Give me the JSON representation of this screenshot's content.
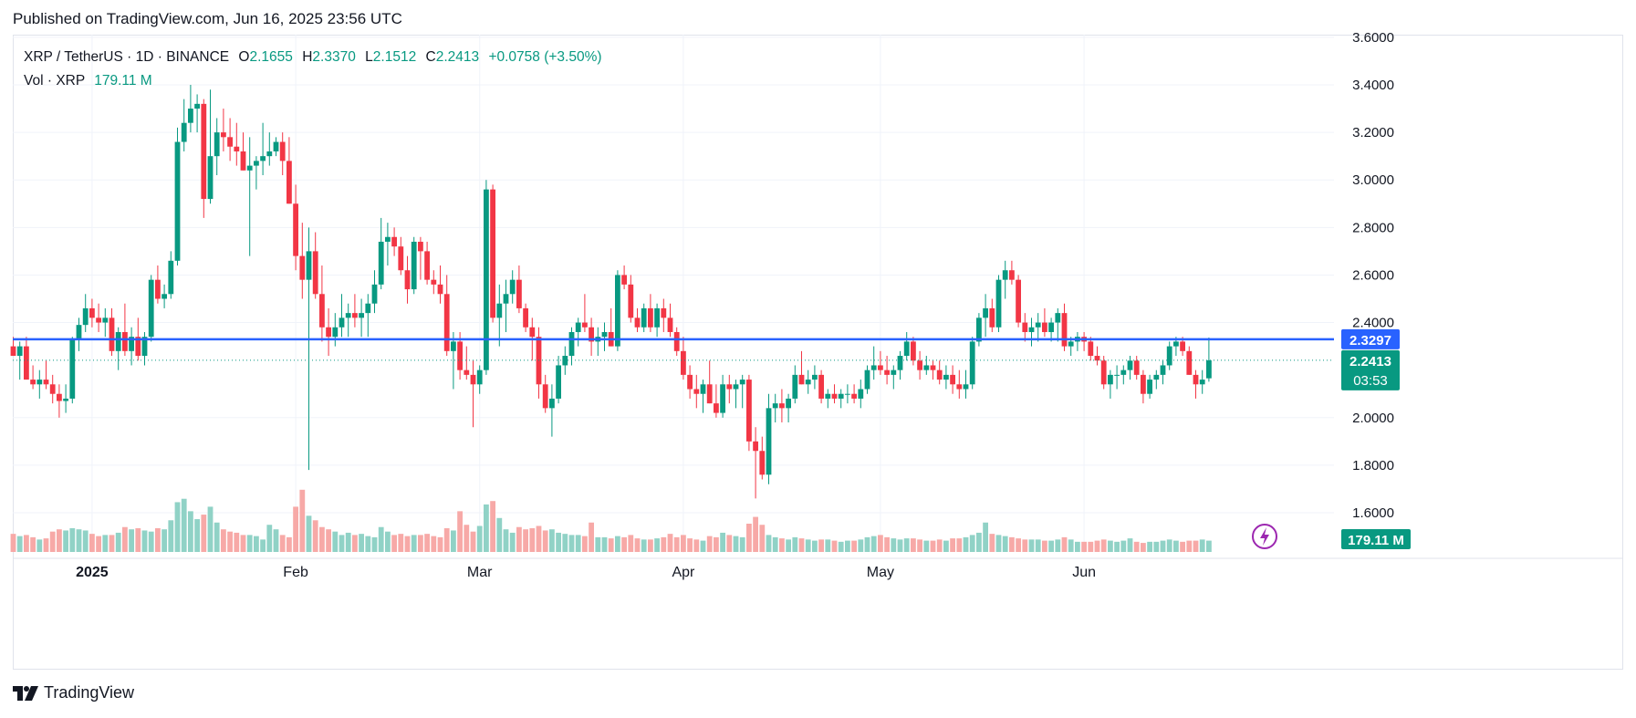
{
  "published": "Published on TradingView.com, Jun 16, 2025 23:56 UTC",
  "legend": {
    "symbol": "XRP / TetherUS · 1D · BINANCE",
    "open_label": "O",
    "open": "2.1655",
    "high_label": "H",
    "high": "2.3370",
    "low_label": "L",
    "low": "2.1512",
    "close_label": "C",
    "close": "2.2413",
    "change": "+0.0758 (+3.50%)",
    "vol_label": "Vol · XRP",
    "vol_value": "179.11 M"
  },
  "logo_text": "TradingView",
  "colors": {
    "up": "#089981",
    "down": "#f23645",
    "vol_up": "#90d2c6",
    "vol_down": "#f7a9a7",
    "hline": "#2962ff",
    "grid": "#f0f3fa"
  },
  "chart_data": {
    "type": "candlestick",
    "symbol": "XRP / TetherUS",
    "interval": "1D",
    "exchange": "BINANCE",
    "y_ticks": [
      "3.6000",
      "3.4000",
      "3.2000",
      "3.0000",
      "2.8000",
      "2.6000",
      "2.4000",
      "2.0000",
      "1.8000",
      "1.6000"
    ],
    "x_labels": [
      {
        "text": "2025",
        "index": 12,
        "bold": true
      },
      {
        "text": "Feb",
        "index": 43,
        "bold": false
      },
      {
        "text": "Mar",
        "index": 71,
        "bold": false
      },
      {
        "text": "Apr",
        "index": 102,
        "bold": false
      },
      {
        "text": "May",
        "index": 132,
        "bold": false
      },
      {
        "text": "Jun",
        "index": 163,
        "bold": false
      }
    ],
    "ylim": [
      1.46,
      3.63
    ],
    "horizontal_line": {
      "value": 2.3297,
      "label": "2.3297"
    },
    "last_price": {
      "value": 2.2413,
      "label": "2.2413",
      "countdown": "03:53"
    },
    "volume_label": "179.11 M",
    "candles": [
      [
        2.3,
        2.34,
        2.26,
        2.26
      ],
      [
        2.26,
        2.32,
        2.16,
        2.3
      ],
      [
        2.3,
        2.34,
        2.16,
        2.16
      ],
      [
        2.16,
        2.22,
        2.12,
        2.14
      ],
      [
        2.14,
        2.2,
        2.08,
        2.16
      ],
      [
        2.16,
        2.24,
        2.12,
        2.14
      ],
      [
        2.14,
        2.18,
        2.06,
        2.1
      ],
      [
        2.1,
        2.14,
        2.0,
        2.07
      ],
      [
        2.07,
        2.14,
        2.02,
        2.08
      ],
      [
        2.08,
        2.34,
        2.06,
        2.33
      ],
      [
        2.33,
        2.42,
        2.28,
        2.39
      ],
      [
        2.39,
        2.52,
        2.36,
        2.46
      ],
      [
        2.46,
        2.5,
        2.38,
        2.42
      ],
      [
        2.42,
        2.48,
        2.36,
        2.4
      ],
      [
        2.4,
        2.46,
        2.34,
        2.42
      ],
      [
        2.42,
        2.46,
        2.26,
        2.28
      ],
      [
        2.28,
        2.38,
        2.2,
        2.36
      ],
      [
        2.36,
        2.48,
        2.26,
        2.28
      ],
      [
        2.28,
        2.38,
        2.22,
        2.34
      ],
      [
        2.34,
        2.42,
        2.24,
        2.26
      ],
      [
        2.26,
        2.36,
        2.22,
        2.34
      ],
      [
        2.34,
        2.6,
        2.32,
        2.58
      ],
      [
        2.58,
        2.64,
        2.48,
        2.5
      ],
      [
        2.5,
        2.56,
        2.46,
        2.52
      ],
      [
        2.52,
        2.7,
        2.5,
        2.66
      ],
      [
        2.66,
        3.22,
        2.64,
        3.16
      ],
      [
        3.16,
        3.34,
        3.12,
        3.24
      ],
      [
        3.24,
        3.4,
        3.2,
        3.3
      ],
      [
        3.3,
        3.36,
        3.2,
        3.32
      ],
      [
        3.32,
        3.34,
        2.84,
        2.92
      ],
      [
        2.92,
        3.38,
        2.9,
        3.1
      ],
      [
        3.1,
        3.26,
        3.02,
        3.2
      ],
      [
        3.2,
        3.3,
        3.12,
        3.18
      ],
      [
        3.18,
        3.26,
        3.08,
        3.14
      ],
      [
        3.14,
        3.24,
        3.06,
        3.12
      ],
      [
        3.12,
        3.2,
        3.04,
        3.04
      ],
      [
        3.04,
        3.18,
        2.68,
        3.06
      ],
      [
        3.06,
        3.1,
        2.96,
        3.08
      ],
      [
        3.08,
        3.24,
        3.02,
        3.1
      ],
      [
        3.1,
        3.2,
        3.06,
        3.12
      ],
      [
        3.12,
        3.18,
        3.1,
        3.16
      ],
      [
        3.16,
        3.2,
        3.02,
        3.08
      ],
      [
        3.08,
        3.18,
        2.9,
        2.9
      ],
      [
        2.9,
        2.98,
        2.62,
        2.68
      ],
      [
        2.68,
        2.82,
        2.5,
        2.58
      ],
      [
        2.58,
        2.8,
        1.78,
        2.7
      ],
      [
        2.7,
        2.78,
        2.5,
        2.52
      ],
      [
        2.52,
        2.64,
        2.32,
        2.38
      ],
      [
        2.38,
        2.46,
        2.26,
        2.34
      ],
      [
        2.34,
        2.44,
        2.3,
        2.38
      ],
      [
        2.38,
        2.52,
        2.34,
        2.42
      ],
      [
        2.42,
        2.48,
        2.34,
        2.44
      ],
      [
        2.44,
        2.52,
        2.38,
        2.42
      ],
      [
        2.42,
        2.5,
        2.34,
        2.44
      ],
      [
        2.44,
        2.52,
        2.34,
        2.48
      ],
      [
        2.48,
        2.62,
        2.44,
        2.56
      ],
      [
        2.56,
        2.84,
        2.54,
        2.74
      ],
      [
        2.74,
        2.82,
        2.64,
        2.76
      ],
      [
        2.76,
        2.8,
        2.68,
        2.72
      ],
      [
        2.72,
        2.76,
        2.6,
        2.62
      ],
      [
        2.62,
        2.68,
        2.48,
        2.54
      ],
      [
        2.54,
        2.76,
        2.52,
        2.74
      ],
      [
        2.74,
        2.76,
        2.58,
        2.7
      ],
      [
        2.7,
        2.74,
        2.56,
        2.58
      ],
      [
        2.58,
        2.62,
        2.52,
        2.56
      ],
      [
        2.56,
        2.64,
        2.48,
        2.52
      ],
      [
        2.52,
        2.6,
        2.26,
        2.28
      ],
      [
        2.28,
        2.36,
        2.12,
        2.32
      ],
      [
        2.32,
        2.36,
        2.16,
        2.2
      ],
      [
        2.2,
        2.3,
        2.16,
        2.18
      ],
      [
        2.18,
        2.24,
        1.96,
        2.14
      ],
      [
        2.14,
        2.22,
        2.1,
        2.2
      ],
      [
        2.2,
        3.0,
        2.18,
        2.96
      ],
      [
        2.96,
        2.98,
        2.4,
        2.42
      ],
      [
        2.42,
        2.56,
        2.3,
        2.48
      ],
      [
        2.48,
        2.58,
        2.36,
        2.52
      ],
      [
        2.52,
        2.62,
        2.48,
        2.58
      ],
      [
        2.58,
        2.64,
        2.44,
        2.46
      ],
      [
        2.46,
        2.48,
        2.36,
        2.38
      ],
      [
        2.38,
        2.42,
        2.24,
        2.34
      ],
      [
        2.34,
        2.38,
        2.08,
        2.14
      ],
      [
        2.14,
        2.18,
        2.02,
        2.04
      ],
      [
        2.04,
        2.14,
        1.92,
        2.08
      ],
      [
        2.08,
        2.26,
        2.06,
        2.22
      ],
      [
        2.22,
        2.3,
        2.18,
        2.26
      ],
      [
        2.26,
        2.38,
        2.22,
        2.36
      ],
      [
        2.36,
        2.42,
        2.3,
        2.4
      ],
      [
        2.4,
        2.52,
        2.36,
        2.38
      ],
      [
        2.38,
        2.42,
        2.26,
        2.32
      ],
      [
        2.32,
        2.38,
        2.26,
        2.34
      ],
      [
        2.34,
        2.4,
        2.28,
        2.36
      ],
      [
        2.36,
        2.46,
        2.3,
        2.3
      ],
      [
        2.3,
        2.62,
        2.28,
        2.6
      ],
      [
        2.6,
        2.64,
        2.54,
        2.56
      ],
      [
        2.56,
        2.6,
        2.4,
        2.42
      ],
      [
        2.42,
        2.46,
        2.36,
        2.38
      ],
      [
        2.38,
        2.48,
        2.36,
        2.46
      ],
      [
        2.46,
        2.52,
        2.36,
        2.38
      ],
      [
        2.38,
        2.48,
        2.34,
        2.46
      ],
      [
        2.46,
        2.5,
        2.36,
        2.42
      ],
      [
        2.42,
        2.48,
        2.34,
        2.36
      ],
      [
        2.36,
        2.38,
        2.26,
        2.28
      ],
      [
        2.28,
        2.34,
        2.16,
        2.18
      ],
      [
        2.18,
        2.22,
        2.08,
        2.12
      ],
      [
        2.12,
        2.18,
        2.04,
        2.1
      ],
      [
        2.1,
        2.16,
        2.02,
        2.14
      ],
      [
        2.14,
        2.24,
        2.06,
        2.06
      ],
      [
        2.06,
        2.14,
        2.0,
        2.02
      ],
      [
        2.02,
        2.18,
        2.0,
        2.14
      ],
      [
        2.14,
        2.18,
        2.06,
        2.12
      ],
      [
        2.12,
        2.16,
        2.04,
        2.14
      ],
      [
        2.14,
        2.18,
        2.04,
        2.16
      ],
      [
        2.16,
        2.18,
        1.86,
        1.9
      ],
      [
        1.9,
        1.96,
        1.66,
        1.86
      ],
      [
        1.86,
        1.92,
        1.74,
        1.76
      ],
      [
        1.76,
        2.1,
        1.72,
        2.04
      ],
      [
        2.04,
        2.1,
        1.98,
        2.06
      ],
      [
        2.06,
        2.12,
        1.98,
        2.04
      ],
      [
        2.04,
        2.1,
        1.98,
        2.08
      ],
      [
        2.08,
        2.22,
        2.06,
        2.18
      ],
      [
        2.18,
        2.28,
        2.14,
        2.14
      ],
      [
        2.14,
        2.2,
        2.1,
        2.16
      ],
      [
        2.16,
        2.22,
        2.12,
        2.18
      ],
      [
        2.18,
        2.2,
        2.06,
        2.08
      ],
      [
        2.08,
        2.12,
        2.04,
        2.1
      ],
      [
        2.1,
        2.14,
        2.06,
        2.08
      ],
      [
        2.08,
        2.12,
        2.04,
        2.1
      ],
      [
        2.1,
        2.14,
        2.06,
        2.1
      ],
      [
        2.1,
        2.14,
        2.06,
        2.08
      ],
      [
        2.08,
        2.16,
        2.04,
        2.12
      ],
      [
        2.12,
        2.22,
        2.1,
        2.2
      ],
      [
        2.2,
        2.3,
        2.16,
        2.22
      ],
      [
        2.22,
        2.28,
        2.18,
        2.2
      ],
      [
        2.2,
        2.26,
        2.14,
        2.18
      ],
      [
        2.18,
        2.22,
        2.12,
        2.2
      ],
      [
        2.2,
        2.28,
        2.16,
        2.26
      ],
      [
        2.26,
        2.36,
        2.24,
        2.32
      ],
      [
        2.32,
        2.34,
        2.22,
        2.24
      ],
      [
        2.24,
        2.28,
        2.16,
        2.2
      ],
      [
        2.2,
        2.26,
        2.18,
        2.22
      ],
      [
        2.22,
        2.24,
        2.16,
        2.2
      ],
      [
        2.2,
        2.24,
        2.14,
        2.16
      ],
      [
        2.16,
        2.22,
        2.12,
        2.18
      ],
      [
        2.18,
        2.22,
        2.1,
        2.14
      ],
      [
        2.14,
        2.2,
        2.08,
        2.12
      ],
      [
        2.12,
        2.2,
        2.08,
        2.14
      ],
      [
        2.14,
        2.34,
        2.12,
        2.32
      ],
      [
        2.32,
        2.44,
        2.3,
        2.42
      ],
      [
        2.42,
        2.52,
        2.34,
        2.46
      ],
      [
        2.46,
        2.5,
        2.36,
        2.38
      ],
      [
        2.38,
        2.6,
        2.36,
        2.58
      ],
      [
        2.58,
        2.66,
        2.5,
        2.62
      ],
      [
        2.62,
        2.66,
        2.56,
        2.58
      ],
      [
        2.58,
        2.6,
        2.38,
        2.4
      ],
      [
        2.4,
        2.44,
        2.32,
        2.36
      ],
      [
        2.36,
        2.42,
        2.3,
        2.38
      ],
      [
        2.38,
        2.44,
        2.32,
        2.4
      ],
      [
        2.4,
        2.46,
        2.34,
        2.36
      ],
      [
        2.36,
        2.42,
        2.32,
        2.4
      ],
      [
        2.4,
        2.46,
        2.32,
        2.44
      ],
      [
        2.44,
        2.48,
        2.28,
        2.3
      ],
      [
        2.3,
        2.34,
        2.26,
        2.32
      ],
      [
        2.32,
        2.36,
        2.28,
        2.34
      ],
      [
        2.34,
        2.36,
        2.28,
        2.32
      ],
      [
        2.32,
        2.34,
        2.24,
        2.26
      ],
      [
        2.26,
        2.3,
        2.22,
        2.24
      ],
      [
        2.24,
        2.26,
        2.12,
        2.14
      ],
      [
        2.14,
        2.2,
        2.08,
        2.18
      ],
      [
        2.18,
        2.22,
        2.12,
        2.18
      ],
      [
        2.18,
        2.22,
        2.14,
        2.2
      ],
      [
        2.2,
        2.26,
        2.16,
        2.24
      ],
      [
        2.24,
        2.26,
        2.16,
        2.18
      ],
      [
        2.18,
        2.2,
        2.06,
        2.1
      ],
      [
        2.1,
        2.18,
        2.08,
        2.16
      ],
      [
        2.16,
        2.2,
        2.12,
        2.18
      ],
      [
        2.18,
        2.24,
        2.14,
        2.22
      ],
      [
        2.22,
        2.32,
        2.2,
        2.3
      ],
      [
        2.3,
        2.34,
        2.26,
        2.32
      ],
      [
        2.32,
        2.34,
        2.26,
        2.28
      ],
      [
        2.28,
        2.3,
        2.18,
        2.18
      ],
      [
        2.18,
        2.2,
        2.08,
        2.14
      ],
      [
        2.14,
        2.2,
        2.1,
        2.16
      ],
      [
        2.1655,
        2.337,
        2.1512,
        2.2413
      ]
    ],
    "volumes": [
      32,
      28,
      30,
      26,
      22,
      24,
      36,
      40,
      38,
      42,
      40,
      38,
      32,
      28,
      30,
      30,
      34,
      44,
      40,
      42,
      38,
      36,
      42,
      40,
      56,
      88,
      94,
      72,
      58,
      66,
      80,
      52,
      40,
      36,
      34,
      30,
      30,
      28,
      22,
      48,
      40,
      30,
      26,
      80,
      110,
      64,
      56,
      44,
      40,
      36,
      30,
      34,
      30,
      32,
      28,
      26,
      44,
      36,
      30,
      32,
      28,
      30,
      30,
      32,
      28,
      26,
      42,
      38,
      72,
      48,
      36,
      46,
      84,
      90,
      60,
      40,
      34,
      44,
      40,
      42,
      46,
      38,
      40,
      34,
      32,
      30,
      30,
      28,
      52,
      26,
      26,
      24,
      28,
      26,
      30,
      24,
      22,
      22,
      24,
      26,
      32,
      26,
      30,
      24,
      22,
      20,
      28,
      26,
      34,
      30,
      28,
      26,
      50,
      62,
      48,
      30,
      26,
      24,
      22,
      26,
      24,
      22,
      20,
      22,
      22,
      20,
      18,
      20,
      20,
      22,
      26,
      28,
      30,
      26,
      24,
      22,
      24,
      24,
      22,
      20,
      20,
      22,
      20,
      24,
      24,
      26,
      30,
      34,
      52,
      32,
      30,
      28,
      26,
      24,
      22,
      22,
      22,
      20,
      20,
      22,
      26,
      22,
      18,
      18,
      18,
      20,
      22,
      20,
      18,
      20,
      24,
      18,
      16,
      18,
      18,
      20,
      22,
      20,
      18,
      20,
      20,
      22,
      20,
      20,
      18,
      16,
      16,
      18,
      18,
      20,
      14
    ]
  }
}
